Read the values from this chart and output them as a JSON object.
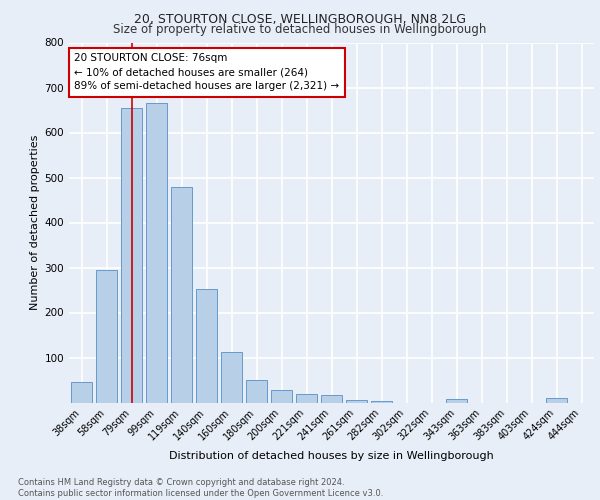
{
  "title1": "20, STOURTON CLOSE, WELLINGBOROUGH, NN8 2LG",
  "title2": "Size of property relative to detached houses in Wellingborough",
  "xlabel": "Distribution of detached houses by size in Wellingborough",
  "ylabel": "Number of detached properties",
  "categories": [
    "38sqm",
    "58sqm",
    "79sqm",
    "99sqm",
    "119sqm",
    "140sqm",
    "160sqm",
    "180sqm",
    "200sqm",
    "221sqm",
    "241sqm",
    "261sqm",
    "282sqm",
    "302sqm",
    "322sqm",
    "343sqm",
    "363sqm",
    "383sqm",
    "403sqm",
    "424sqm",
    "444sqm"
  ],
  "values": [
    45,
    295,
    655,
    665,
    480,
    253,
    113,
    50,
    28,
    18,
    17,
    5,
    4,
    0,
    0,
    8,
    0,
    0,
    0,
    10,
    0
  ],
  "bar_color": "#b8cfe8",
  "bar_edge_color": "#6699cc",
  "vline_x": 2,
  "vline_color": "#cc0000",
  "annotation_text": "20 STOURTON CLOSE: 76sqm\n← 10% of detached houses are smaller (264)\n89% of semi-detached houses are larger (2,321) →",
  "annotation_box_color": "#ffffff",
  "annotation_box_edge_color": "#cc0000",
  "ylim": [
    0,
    800
  ],
  "yticks": [
    0,
    100,
    200,
    300,
    400,
    500,
    600,
    700,
    800
  ],
  "footer1": "Contains HM Land Registry data © Crown copyright and database right 2024.",
  "footer2": "Contains public sector information licensed under the Open Government Licence v3.0.",
  "bg_color": "#e8eef8",
  "plot_bg_color": "#e8eef8"
}
